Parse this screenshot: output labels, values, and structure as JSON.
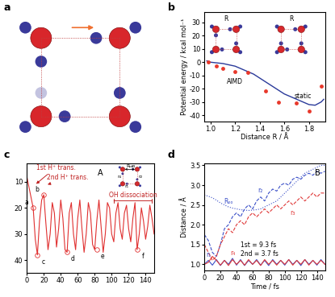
{
  "diagram": {
    "panel": "a"
  },
  "chart_data": [
    {
      "type": "line",
      "panel": "b",
      "x_label": "Distance R / Å",
      "y_label": "Potential energy / kcal mol⁻¹",
      "xlim": [
        0.95,
        1.93
      ],
      "ylim": [
        -45,
        38
      ],
      "xticks": [
        1.0,
        1.2,
        1.4,
        1.6,
        1.8
      ],
      "yticks": [
        -40,
        -30,
        -20,
        -10,
        0,
        10,
        20,
        30
      ],
      "inset_labels": [
        "R",
        "R"
      ],
      "series": [
        {
          "name": "static",
          "type": "line",
          "color": "#2a3a9a",
          "line_style": "solid",
          "x": [
            0.97,
            1.0,
            1.05,
            1.1,
            1.15,
            1.2,
            1.25,
            1.3,
            1.35,
            1.4,
            1.45,
            1.5,
            1.55,
            1.6,
            1.65,
            1.7,
            1.75,
            1.8,
            1.85,
            1.9,
            1.92
          ],
          "values": [
            1,
            0,
            -0.5,
            -1,
            -2,
            -3,
            -5,
            -7,
            -9,
            -12,
            -15,
            -18,
            -21,
            -24,
            -26,
            -28,
            -30,
            -32,
            -32.5,
            -30,
            -28
          ]
        },
        {
          "name": "AIMD",
          "type": "scatter",
          "color": "#e8382b",
          "marker": "o",
          "x": [
            0.98,
            1.05,
            1.1,
            1.2,
            1.3,
            1.45,
            1.55,
            1.7,
            1.8,
            1.9
          ],
          "values": [
            0,
            -3,
            -5,
            -7,
            -8,
            -22,
            -30,
            -31,
            -37,
            -18
          ]
        }
      ]
    },
    {
      "type": "line",
      "panel": "c",
      "tag": "A",
      "xlim": [
        0,
        150
      ],
      "ylim": [
        45,
        3
      ],
      "xticks": [
        0,
        20,
        40,
        60,
        80,
        100,
        120,
        140
      ],
      "yticks": [
        10,
        20,
        30,
        40
      ],
      "inset_labels": [
        "Rₒₒ",
        "r₁",
        "r₂",
        "r₃",
        "r₄"
      ],
      "series": [
        {
          "type": "line",
          "color": "#e03030",
          "line_style": "solid",
          "x": [
            0,
            2.5,
            5,
            7.5,
            10,
            12.5,
            15,
            17.5,
            20,
            22.5,
            25,
            27.5,
            30,
            32.5,
            35,
            37.5,
            40,
            42.5,
            45,
            47.5,
            50,
            52.5,
            55,
            57.5,
            60,
            62.5,
            65,
            67.5,
            70,
            72.5,
            75,
            77.5,
            80,
            82.5,
            85,
            87.5,
            90,
            92.5,
            95,
            97.5,
            100,
            102.5,
            105,
            107.5,
            110,
            112.5,
            115,
            117.5,
            120,
            122.5,
            125,
            127.5,
            130,
            132.5,
            135,
            137.5,
            140,
            142.5,
            145,
            147.5,
            150
          ],
          "values": [
            8,
            12,
            16,
            20,
            32,
            38,
            25,
            17,
            15,
            26,
            36,
            30,
            18,
            22,
            35,
            28,
            17,
            24,
            36,
            37,
            22,
            18,
            30,
            36,
            24,
            17,
            28,
            37,
            30,
            18,
            22,
            34,
            36,
            25,
            17,
            27,
            37,
            30,
            18,
            20,
            30,
            33,
            22,
            18,
            28,
            32,
            22,
            19,
            28,
            33,
            24,
            18,
            36,
            30,
            20,
            25,
            32,
            27,
            19,
            24,
            30
          ]
        }
      ],
      "points": [
        {
          "label": "a",
          "x": 7.5,
          "y": 20
        },
        {
          "label": "b",
          "x": 20,
          "y": 15
        },
        {
          "label": "c",
          "x": 12.5,
          "y": 38
        },
        {
          "label": "d",
          "x": 47.5,
          "y": 37
        },
        {
          "label": "e",
          "x": 82.5,
          "y": 36
        },
        {
          "label": "f",
          "x": 130,
          "y": 36
        }
      ],
      "annotations": [
        {
          "text": "1st H⁺ trans.",
          "x": 9
        },
        {
          "text": "2nd H⁺ trans.",
          "x": 22
        }
      ],
      "span_annotation": {
        "text": "OH dissociation",
        "x": [
          100,
          150
        ]
      }
    },
    {
      "type": "line",
      "panel": "d",
      "tag": "B",
      "x_label": "Time / fs",
      "y_label": "Distance / Å",
      "xlim": [
        0,
        150
      ],
      "ylim": [
        0.85,
        3.55
      ],
      "xticks": [
        0,
        20,
        40,
        60,
        80,
        100,
        120,
        140
      ],
      "yticks": [
        1.0,
        1.5,
        2.0,
        2.5,
        3.0,
        3.5
      ],
      "notes": [
        "1st = 9.3 fs",
        "2nd = 3.7 fs"
      ],
      "x": [
        0,
        5,
        10,
        15,
        20,
        25,
        30,
        35,
        40,
        45,
        50,
        55,
        60,
        65,
        70,
        75,
        80,
        85,
        90,
        95,
        100,
        105,
        110,
        115,
        120,
        125,
        130,
        135,
        140,
        145,
        150
      ],
      "series": [
        {
          "name": "Rₒₒ",
          "color": "#3a4fc8",
          "line_style": "dotted",
          "values": [
            2.75,
            2.72,
            2.68,
            2.62,
            2.55,
            2.5,
            2.45,
            2.42,
            2.4,
            2.38,
            2.37,
            2.36,
            2.37,
            2.38,
            2.4,
            2.45,
            2.5,
            2.55,
            2.6,
            2.7,
            2.8,
            2.9,
            3.0,
            3.1,
            3.2,
            3.3,
            3.35,
            3.4,
            3.45,
            3.5,
            3.5
          ]
        },
        {
          "name": "r₁",
          "color": "#3a4fc8",
          "line_style": "solid",
          "values": [
            1.0,
            1.1,
            0.98,
            1.12,
            0.97,
            1.1,
            1.0,
            1.15,
            0.98,
            1.12,
            0.97,
            1.1,
            1.0,
            1.12,
            0.98,
            1.1,
            0.97,
            1.12,
            1.0,
            1.1,
            0.98,
            1.12,
            1.0,
            1.1,
            0.97,
            1.12,
            1.0,
            1.1,
            0.98,
            1.12,
            1.0
          ]
        },
        {
          "name": "r₂",
          "color": "#3a4fc8",
          "line_style": "dashed",
          "values": [
            1.75,
            1.6,
            1.3,
            1.2,
            1.5,
            1.9,
            2.0,
            2.2,
            2.3,
            2.2,
            2.4,
            2.5,
            2.4,
            2.6,
            2.7,
            2.6,
            2.8,
            2.9,
            2.85,
            3.0,
            3.05,
            3.0,
            3.15,
            3.2,
            3.15,
            3.25,
            3.3,
            3.25,
            3.35,
            3.3,
            3.35
          ]
        },
        {
          "name": "r₃",
          "color": "#e03a3a",
          "line_style": "dashed",
          "values": [
            1.5,
            1.3,
            1.1,
            1.2,
            1.5,
            1.7,
            1.9,
            1.8,
            2.0,
            2.1,
            2.0,
            2.2,
            2.3,
            2.2,
            2.3,
            2.4,
            2.3,
            2.4,
            2.5,
            2.4,
            2.5,
            2.6,
            2.5,
            2.6,
            2.7,
            2.6,
            2.7,
            2.8,
            2.7,
            2.8,
            2.8
          ]
        },
        {
          "name": "r₄",
          "color": "#e03a3a",
          "line_style": "solid",
          "values": [
            1.0,
            1.05,
            1.2,
            1.1,
            0.98,
            1.1,
            0.97,
            1.12,
            1.0,
            1.1,
            0.98,
            1.12,
            1.0,
            1.1,
            0.97,
            1.12,
            1.0,
            1.1,
            0.98,
            1.1,
            1.0,
            1.12,
            0.98,
            1.1,
            1.0,
            1.12,
            0.98,
            1.1,
            1.0,
            1.1,
            1.0
          ]
        }
      ]
    }
  ]
}
